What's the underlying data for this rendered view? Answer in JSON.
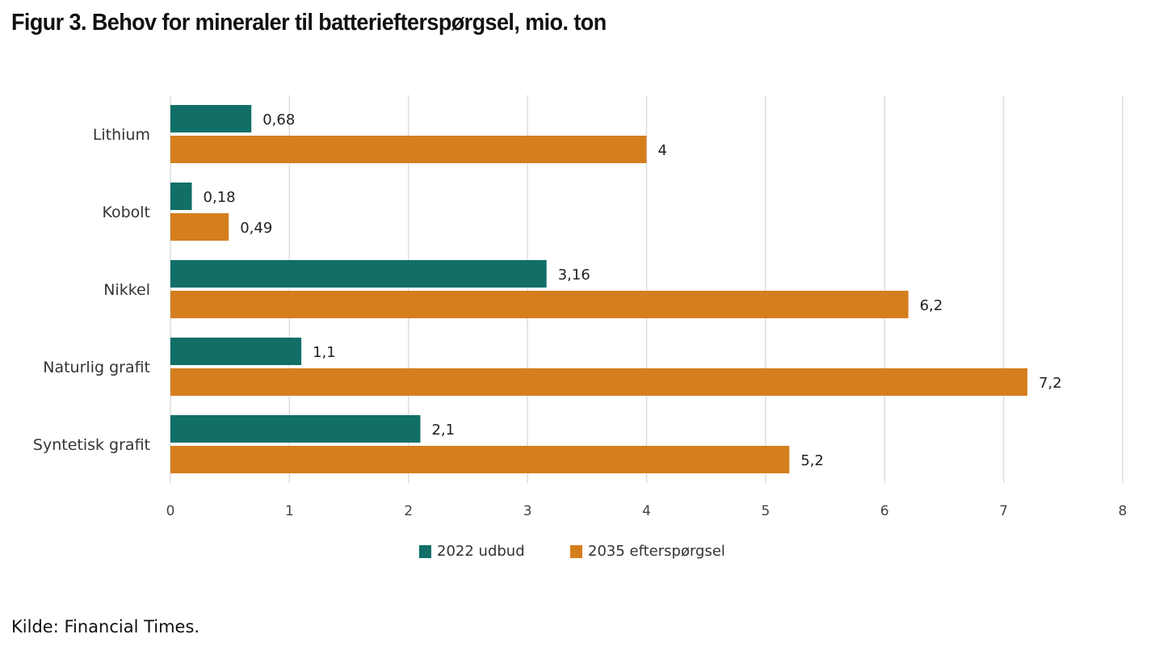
{
  "title": "Figur 3. Behov for mineraler til batteriefterspørgsel, mio. ton",
  "source": "Kilde: Financial Times.",
  "colors": {
    "series_2022": "#116f68",
    "series_2035": "#d57e1e",
    "grid": "#dddddd"
  },
  "chart_data": {
    "type": "bar",
    "orientation": "horizontal",
    "title": "Figur 3. Behov for mineraler til batteriefterspørgsel, mio. ton",
    "xlabel": "",
    "ylabel": "",
    "categories": [
      "Lithium",
      "Kobolt",
      "Nikkel",
      "Naturlig grafit",
      "Syntetisk grafit"
    ],
    "series": [
      {
        "name": "2022 udbud",
        "color": "#116f68",
        "values": [
          0.68,
          0.18,
          3.16,
          1.1,
          2.1
        ],
        "labels": [
          "0,68",
          "0,18",
          "3,16",
          "1,1",
          "2,1"
        ]
      },
      {
        "name": "2035 efterspørgsel",
        "color": "#d57e1e",
        "values": [
          4,
          0.49,
          6.2,
          7.2,
          5.2
        ],
        "labels": [
          "4",
          "0,49",
          "6,2",
          "7,2",
          "5,2"
        ]
      }
    ],
    "xlim": [
      0,
      8
    ],
    "xticks": [
      0,
      1,
      2,
      3,
      4,
      5,
      6,
      7,
      8
    ],
    "xtick_labels": [
      "0",
      "1",
      "2",
      "3",
      "4",
      "5",
      "6",
      "7",
      "8"
    ],
    "grid": true,
    "grid_axis": "x",
    "legend_position": "bottom-center",
    "data_labels": true
  }
}
